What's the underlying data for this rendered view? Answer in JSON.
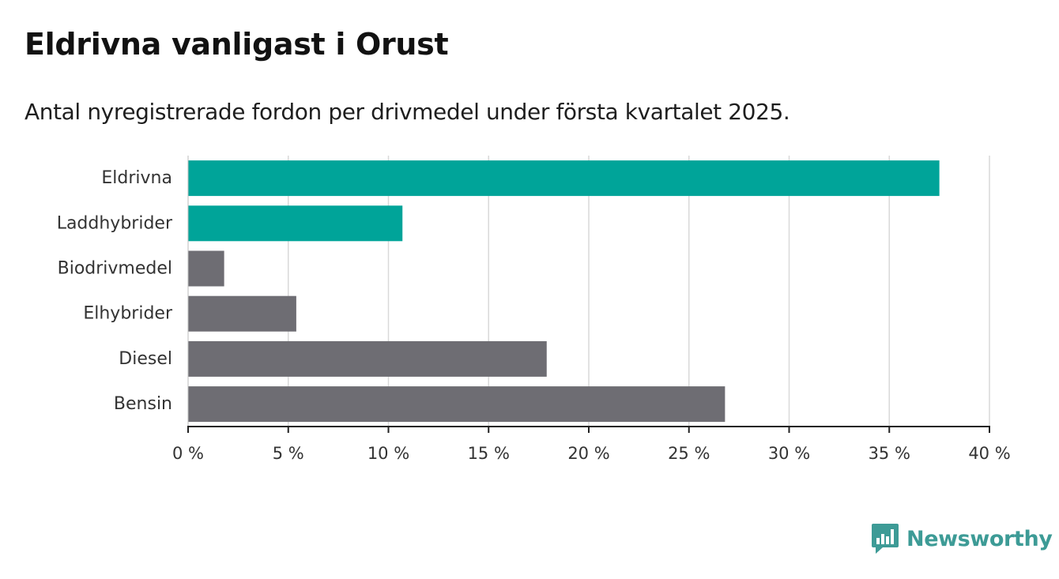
{
  "title": "Eldrivna vanligast i Orust",
  "subtitle": "Antal nyregistrerade fordon per drivmedel under första kvartalet 2025.",
  "brand": {
    "name": "Newsworthy",
    "color": "#3d9b96",
    "icon": "bar-chart-speech-bubble-icon"
  },
  "colors": {
    "highlight": "#00a499",
    "default": "#6e6d73",
    "grid": "#d9d9d9",
    "axis": "#222222"
  },
  "chart_data": {
    "type": "bar",
    "orientation": "horizontal",
    "title": "Eldrivna vanligast i Orust",
    "subtitle": "Antal nyregistrerade fordon per drivmedel under första kvartalet 2025.",
    "categories": [
      "Eldrivna",
      "Laddhybrider",
      "Biodrivmedel",
      "Elhybrider",
      "Diesel",
      "Bensin"
    ],
    "values": [
      37.5,
      10.7,
      1.8,
      5.4,
      17.9,
      26.8
    ],
    "highlighted": [
      true,
      true,
      false,
      false,
      false,
      false
    ],
    "xlim": [
      0,
      40
    ],
    "xticks": [
      0,
      5,
      10,
      15,
      20,
      25,
      30,
      35,
      40
    ],
    "xtick_labels": [
      "0 %",
      "5 %",
      "10 %",
      "15 %",
      "20 %",
      "25 %",
      "30 %",
      "35 %",
      "40 %"
    ],
    "grid": "vertical",
    "legend": "none",
    "unit": "%"
  }
}
